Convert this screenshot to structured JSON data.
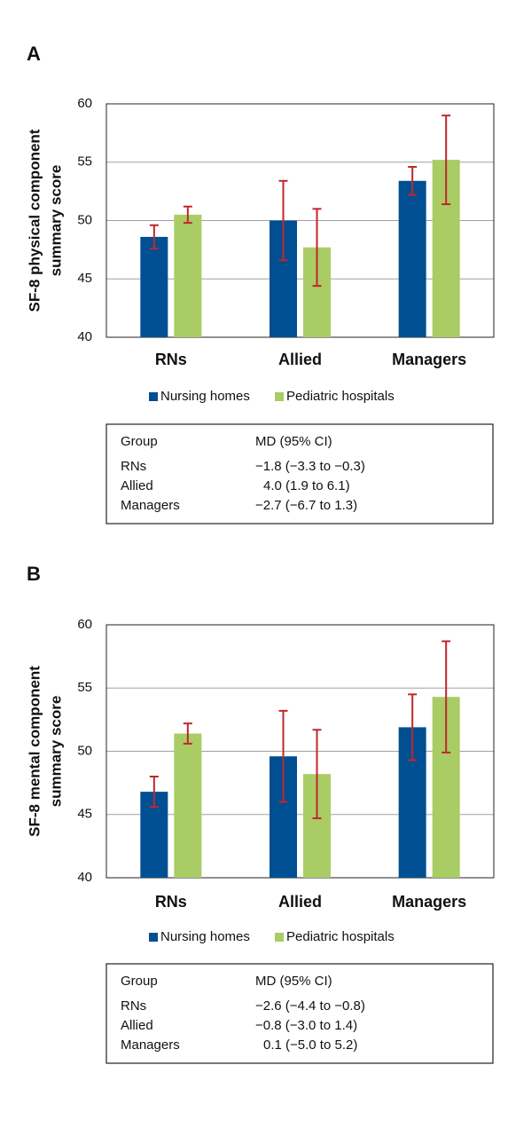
{
  "chart_data": [
    {
      "type": "bar",
      "panel": "A",
      "ylabel": [
        "SF-8 physical component",
        "summary score"
      ],
      "categories": [
        "RNs",
        "Allied",
        "Managers"
      ],
      "series": [
        {
          "name": "Nursing homes",
          "color": "#004f93",
          "values": [
            48.6,
            50.0,
            53.4
          ],
          "errors": [
            1.0,
            3.4,
            1.2
          ]
        },
        {
          "name": "Pediatric hospitals",
          "color": "#a9cc65",
          "values": [
            50.5,
            47.7,
            55.2
          ],
          "errors": [
            0.7,
            3.3,
            3.8
          ]
        }
      ],
      "error_color": "#c0272d",
      "ylim": [
        40,
        60
      ],
      "yticks": [
        40,
        45,
        50,
        55,
        60
      ],
      "grid": true,
      "table": {
        "header": [
          "Group",
          "MD (95% CI)"
        ],
        "rows": [
          [
            "RNs",
            "−1.8 (−3.3 to −0.3)"
          ],
          [
            "Allied",
            "4.0 (1.9 to 6.1)"
          ],
          [
            "Managers",
            "−2.7 (−6.7 to 1.3)"
          ]
        ]
      }
    },
    {
      "type": "bar",
      "panel": "B",
      "ylabel": [
        "SF-8 mental component",
        "summary score"
      ],
      "categories": [
        "RNs",
        "Allied",
        "Managers"
      ],
      "series": [
        {
          "name": "Nursing homes",
          "color": "#004f93",
          "values": [
            46.8,
            49.6,
            51.9
          ],
          "errors": [
            1.2,
            3.6,
            2.6
          ]
        },
        {
          "name": "Pediatric hospitals",
          "color": "#a9cc65",
          "values": [
            51.4,
            48.2,
            54.3
          ],
          "errors": [
            0.8,
            3.5,
            4.4
          ]
        }
      ],
      "error_color": "#c0272d",
      "ylim": [
        40,
        60
      ],
      "yticks": [
        40,
        45,
        50,
        55,
        60
      ],
      "grid": true,
      "table": {
        "header": [
          "Group",
          "MD (95% CI)"
        ],
        "rows": [
          [
            "RNs",
            "−2.6 (−4.4 to −0.8)"
          ],
          [
            "Allied",
            "−0.8 (−3.0 to 1.4)"
          ],
          [
            "Managers",
            "0.1 (−5.0 to 5.2)"
          ]
        ]
      }
    }
  ]
}
